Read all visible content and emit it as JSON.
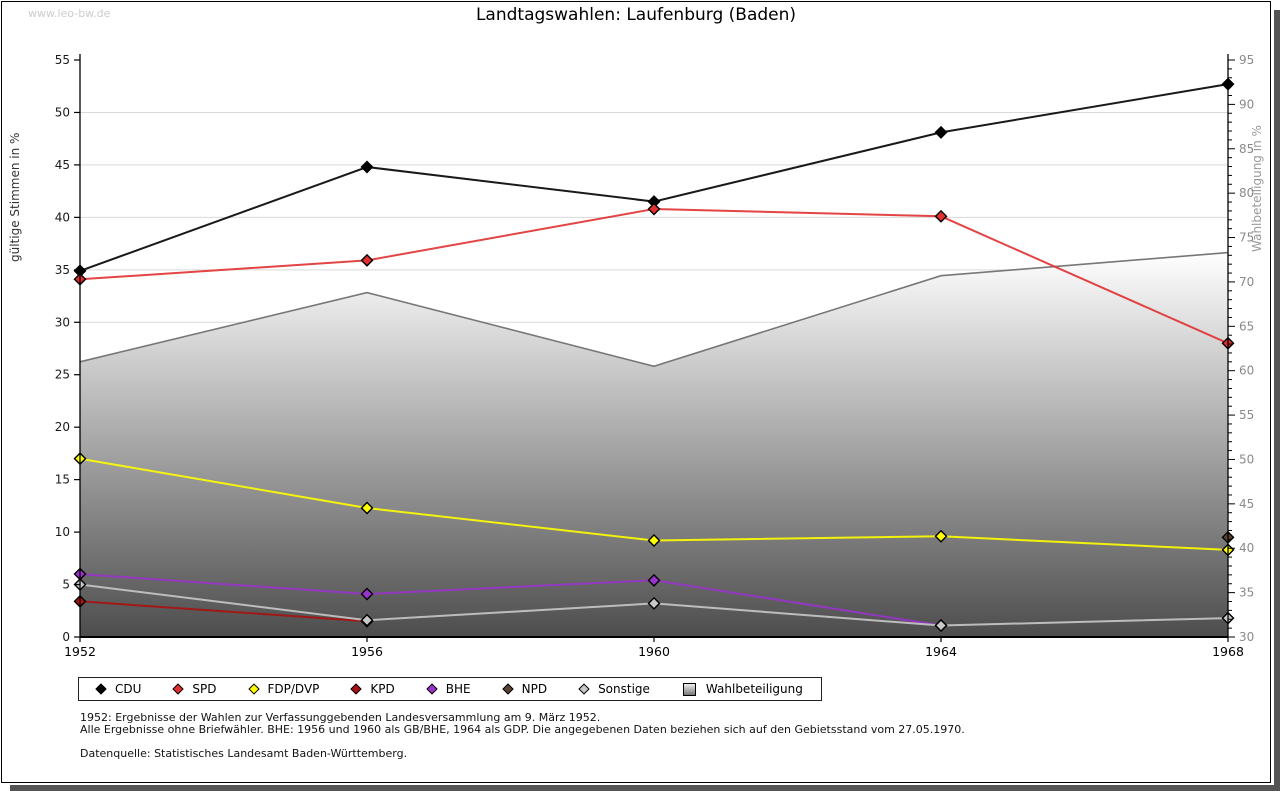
{
  "watermark": "www.leo-bw.de",
  "title": "Landtagswahlen: Laufenburg (Baden)",
  "axes": {
    "left_label": "gültige Stimmen in %",
    "right_label": "Wahlbeteiligung in %"
  },
  "footer": {
    "line1": "1952: Ergebnisse der Wahlen zur Verfassunggebenden Landesversammlung am 9. März 1952.",
    "line2": "Alle Ergebnisse ohne Briefwähler. BHE: 1956 und 1960 als GB/BHE, 1964 als GDP. Die angegebenen Daten beziehen sich auf den Gebietsstand vom 27.05.1970.",
    "line3": "Datenquelle: Statistisches Landesamt Baden-Württemberg."
  },
  "chart_data": {
    "type": "line",
    "title": "Landtagswahlen: Laufenburg (Baden)",
    "x": [
      "1952",
      "1956",
      "1960",
      "1964",
      "1968"
    ],
    "left_axis": {
      "label": "gültige Stimmen in %",
      "min": 0,
      "max": 55,
      "tick_step": 5,
      "tick_color": "#1a1a1a"
    },
    "right_axis": {
      "label": "Wahlbeteiligung in %",
      "min": 30,
      "max": 95,
      "tick_step": 5,
      "minor_step": 1,
      "tick_color": "#8a8a8a"
    },
    "grid": {
      "horizontal": true,
      "step_left_axis": 5,
      "color": "#d9d9d9"
    },
    "legend_position": "bottom",
    "series": [
      {
        "name": "CDU",
        "color": "#000000",
        "axis": "left",
        "values": [
          34.9,
          44.8,
          41.5,
          48.1,
          52.7
        ]
      },
      {
        "name": "SPD",
        "color": "#e03030",
        "axis": "left",
        "values": [
          34.1,
          35.9,
          40.8,
          40.1,
          28.0
        ]
      },
      {
        "name": "FDP/DVP",
        "color": "#ffff00",
        "axis": "left",
        "values": [
          17.0,
          12.3,
          9.2,
          9.6,
          8.3
        ]
      },
      {
        "name": "KPD",
        "color": "#aa1111",
        "axis": "left",
        "values": [
          3.4,
          1.5,
          null,
          null,
          null
        ]
      },
      {
        "name": "BHE",
        "color": "#9933cc",
        "axis": "left",
        "values": [
          6.0,
          4.1,
          5.4,
          1.1,
          null
        ]
      },
      {
        "name": "NPD",
        "color": "#5c4332",
        "axis": "left",
        "values": [
          null,
          null,
          null,
          null,
          9.5
        ]
      },
      {
        "name": "Sonstige",
        "color": "#c8c8c8",
        "axis": "left",
        "values": [
          5.0,
          1.6,
          3.2,
          1.1,
          1.8
        ]
      }
    ],
    "area_series": {
      "name": "Wahlbeteiligung",
      "axis": "right",
      "values": [
        61.0,
        68.8,
        60.5,
        70.7,
        73.3
      ],
      "edge_color": "#777777",
      "fill_top": "#ffffff",
      "fill_bottom": "#4d4d4d"
    }
  }
}
